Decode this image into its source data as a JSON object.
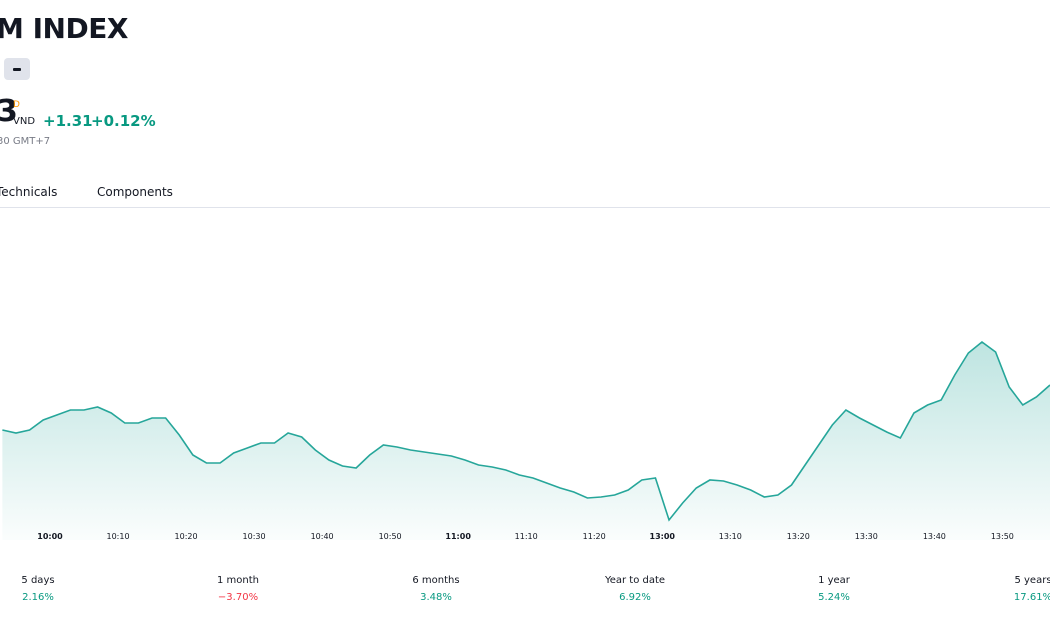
{
  "header": {
    "title": "M INDEX",
    "price": "3",
    "price_flag": "D",
    "currency": "VND",
    "change": "+1.31",
    "change_percent": "+0.12%",
    "time": "30 GMT+7"
  },
  "tabs": [
    "Technicals",
    "Components"
  ],
  "chart_data": {
    "type": "area",
    "color": "#26a69a",
    "x": [
      -7,
      -5,
      -3,
      -1,
      1,
      3,
      5,
      7,
      9,
      11,
      13,
      15,
      17,
      19,
      21,
      23,
      25,
      27,
      29,
      31,
      33,
      35,
      37,
      39,
      41,
      43,
      45,
      47,
      49,
      51,
      53,
      55,
      57,
      59,
      61,
      63,
      65,
      67,
      69,
      71,
      73,
      75,
      77,
      79,
      81,
      83,
      85,
      87,
      89,
      91,
      93,
      95,
      97,
      99,
      101,
      103,
      105,
      107,
      109,
      111,
      113,
      115,
      117,
      119,
      121,
      123,
      125,
      127,
      129,
      131,
      133,
      135,
      137,
      139,
      141,
      143,
      145,
      147
    ],
    "values": [
      110,
      107,
      110,
      120,
      125,
      130,
      130,
      133,
      127,
      117,
      117,
      122,
      122,
      105,
      85,
      77,
      77,
      87,
      92,
      97,
      97,
      107,
      103,
      90,
      80,
      74,
      72,
      85,
      95,
      93,
      90,
      88,
      86,
      84,
      80,
      75,
      73,
      70,
      65,
      62,
      57,
      52,
      48,
      42,
      43,
      45,
      50,
      60,
      62,
      20,
      37,
      52,
      60,
      59,
      55,
      50,
      43,
      45,
      55,
      75,
      95,
      115,
      130,
      122,
      115,
      108,
      102,
      127,
      135,
      140,
      165,
      187,
      198,
      188,
      153,
      135,
      143,
      155
    ],
    "xlim": [
      -7.35,
      147
    ],
    "ylim": [
      0,
      330
    ],
    "xticks": [
      {
        "value": 0,
        "label": "10:00"
      },
      {
        "value": 10,
        "label": "10:10"
      },
      {
        "value": 20,
        "label": "10:20"
      },
      {
        "value": 30,
        "label": "10:30"
      },
      {
        "value": 40,
        "label": "10:40"
      },
      {
        "value": 50,
        "label": "10:50"
      },
      {
        "value": 60,
        "label": "11:00"
      },
      {
        "value": 70,
        "label": "11:10"
      },
      {
        "value": 80,
        "label": "11:20"
      },
      {
        "value": 90,
        "label": "13:00"
      },
      {
        "value": 100,
        "label": "13:10"
      },
      {
        "value": 110,
        "label": "13:20"
      },
      {
        "value": 120,
        "label": "13:30"
      },
      {
        "value": 130,
        "label": "13:40"
      },
      {
        "value": 140,
        "label": "13:50"
      }
    ]
  },
  "performance": [
    {
      "label": "5 days",
      "value": "2.16%",
      "color": "#089981"
    },
    {
      "label": "1 month",
      "value": "−3.70%",
      "color": "#f23645"
    },
    {
      "label": "6 months",
      "value": "3.48%",
      "color": "#089981"
    },
    {
      "label": "Year to date",
      "value": "6.92%",
      "color": "#089981"
    },
    {
      "label": "1 year",
      "value": "5.24%",
      "color": "#089981"
    },
    {
      "label": "5 years",
      "value": "17.61%",
      "color": "#089981"
    }
  ]
}
